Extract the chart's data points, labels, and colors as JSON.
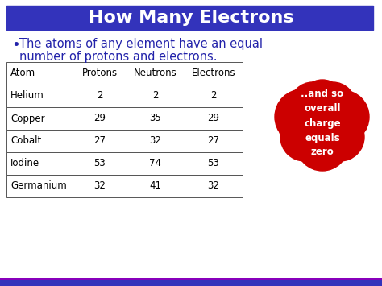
{
  "title": "How Many Electrons",
  "title_bg": "#3333BB",
  "title_color": "#FFFFFF",
  "bullet_text_line1": "The atoms of any element have an equal",
  "bullet_text_line2": "number of protons and electrons.",
  "bullet_color": "#2222AA",
  "table_headers": [
    "Atom",
    "Protons",
    "Neutrons",
    "Electrons"
  ],
  "table_rows": [
    [
      "Helium",
      "2",
      "2",
      "2"
    ],
    [
      "Copper",
      "29",
      "35",
      "29"
    ],
    [
      "Cobalt",
      "27",
      "32",
      "27"
    ],
    [
      "Iodine",
      "53",
      "74",
      "53"
    ],
    [
      "Germanium",
      "32",
      "41",
      "32"
    ]
  ],
  "bubble_color": "#CC0000",
  "bubble_text": "..and so\noverall\ncharge\nequals\nzero",
  "bubble_text_color": "#FFFFFF",
  "bg_color": "#FFFFFF",
  "footer_color1": "#3333BB",
  "footer_color2": "#8800BB",
  "fig_width": 4.74,
  "fig_height": 3.55,
  "dpi": 100
}
